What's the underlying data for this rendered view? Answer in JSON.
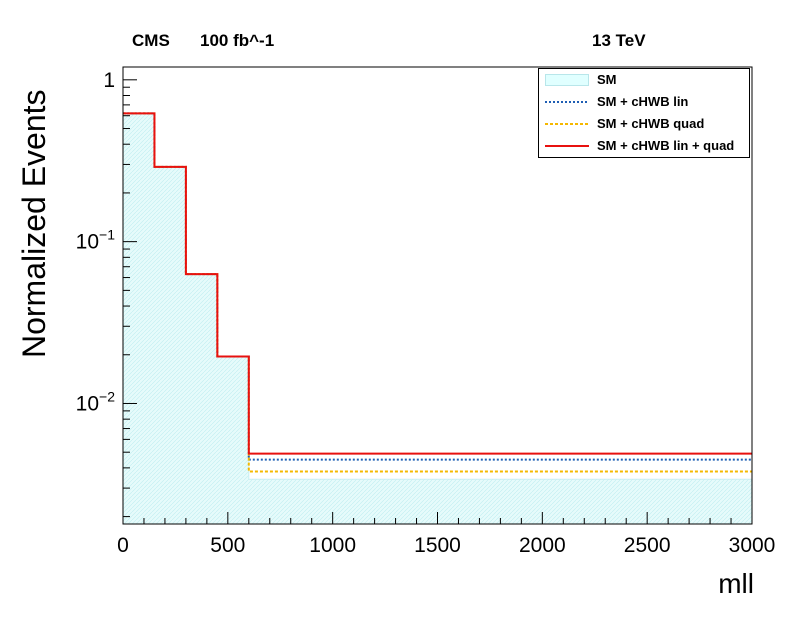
{
  "header": {
    "experiment": "CMS",
    "luminosity": "100 fb^-1",
    "energy": "13 TeV"
  },
  "chart_data": {
    "type": "line",
    "x_bins": [
      0,
      150,
      300,
      450,
      600,
      3000
    ],
    "xlim": [
      0,
      3000
    ],
    "ylim": [
      0.0018,
      1.2
    ],
    "yscale": "log",
    "xlabel": "mll",
    "ylabel": "Normalized Events",
    "x_ticks": [
      0,
      500,
      1000,
      1500,
      2000,
      2500,
      3000
    ],
    "y_ticks": [
      {
        "value": 1,
        "base": "1",
        "exp": ""
      },
      {
        "value": 0.1,
        "base": "10",
        "exp": "−1"
      },
      {
        "value": 0.01,
        "base": "10",
        "exp": "−2"
      }
    ],
    "legend_position": "top-right",
    "grid": false,
    "series": [
      {
        "name": "SM",
        "style": "fill",
        "color": "#e0ffff",
        "edge": "#c8eef2",
        "values": [
          0.62,
          0.29,
          0.063,
          0.0195,
          0.0034
        ]
      },
      {
        "name": "SM + cHWB lin",
        "style": "dotted",
        "color": "#1f5fb4",
        "values": [
          0.62,
          0.29,
          0.063,
          0.0195,
          0.0045
        ]
      },
      {
        "name": "SM + cHWB quad",
        "style": "dashed",
        "color": "#f5b800",
        "values": [
          0.62,
          0.29,
          0.063,
          0.0195,
          0.0038
        ]
      },
      {
        "name": "SM + cHWB lin + quad",
        "style": "solid",
        "color": "#e8110f",
        "values": [
          0.62,
          0.29,
          0.063,
          0.0195,
          0.0049
        ]
      }
    ]
  }
}
